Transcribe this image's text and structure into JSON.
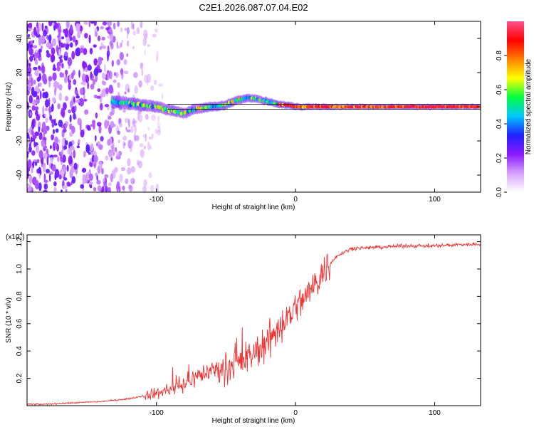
{
  "figure": {
    "title": "C2E1.2026.087.07.04.E02"
  },
  "chart_data": [
    {
      "type": "heatmap",
      "title": "C2E1.2026.087.07.04.E02",
      "xlabel": "Height of straight line (km)",
      "ylabel": "Frequency (Hz)",
      "xlim": [
        -193,
        133
      ],
      "ylim": [
        -50,
        50
      ],
      "xticks": [
        -100,
        0,
        100
      ],
      "xtick_labels": [
        "-100",
        "0",
        "100"
      ],
      "yticks": [
        -40,
        -20,
        0,
        20,
        40
      ],
      "ytick_labels": [
        "-40",
        "-20",
        "0",
        "20",
        "40"
      ],
      "colorbar": {
        "label": "Normalized spectral amplitude",
        "range": [
          0,
          1
        ],
        "ticks": [
          0.0,
          0.2,
          0.4,
          0.6,
          0.8
        ],
        "tick_labels": [
          "0.0",
          "0.2",
          "0.4",
          "0.6",
          "0.8"
        ],
        "colors": [
          "#ffffff",
          "#d7a0ff",
          "#8a1aff",
          "#2020ff",
          "#00c8ff",
          "#00ff40",
          "#ffff00",
          "#ff8000",
          "#ff0000",
          "#ff5090"
        ]
      },
      "ridge": {
        "x": [
          -132,
          -120,
          -110,
          -100,
          -90,
          -80,
          -75,
          -70,
          -60,
          -50,
          -45,
          -40,
          -35,
          -30,
          -25,
          -20,
          -15,
          -10,
          -5,
          0,
          10,
          20,
          30,
          40,
          60,
          80,
          100,
          120,
          133
        ],
        "y": [
          3,
          2,
          1,
          0,
          -2,
          -4,
          -2,
          -1,
          0,
          1,
          3,
          4,
          5,
          5,
          4,
          3,
          2,
          1,
          1,
          0,
          0,
          0,
          0,
          0,
          0,
          0,
          0,
          0,
          0
        ]
      },
      "noise_region_x": [
        -193,
        -105
      ],
      "reference_lines_y": [
        -1.5,
        1.5
      ]
    },
    {
      "type": "line",
      "xlabel": "Height of straight line (km)",
      "ylabel": "SNR (10 * v/v)",
      "y_scale_label": "(x10",
      "y_scale_exponent": "4",
      "xlim": [
        -193,
        133
      ],
      "ylim": [
        0,
        1.25
      ],
      "xticks": [
        -100,
        0,
        100
      ],
      "xtick_labels": [
        "-100",
        "0",
        "100"
      ],
      "yticks": [
        0.2,
        0.4,
        0.6,
        0.8,
        1.0,
        1.2
      ],
      "ytick_labels": [
        "0.2",
        "0.4",
        "0.6",
        "0.8",
        "1.0",
        "1.2"
      ],
      "color": "#ee3333",
      "series": [
        {
          "name": "SNR",
          "x": [
            -193,
            -180,
            -160,
            -140,
            -130,
            -120,
            -110,
            -100,
            -90,
            -80,
            -70,
            -60,
            -50,
            -40,
            -30,
            -20,
            -10,
            0,
            10,
            20,
            30,
            40,
            60,
            80,
            100,
            120,
            133
          ],
          "y": [
            0.01,
            0.01,
            0.02,
            0.03,
            0.04,
            0.05,
            0.07,
            0.09,
            0.12,
            0.16,
            0.22,
            0.26,
            0.29,
            0.31,
            0.38,
            0.48,
            0.6,
            0.72,
            0.83,
            0.98,
            1.1,
            1.15,
            1.16,
            1.17,
            1.17,
            1.18,
            1.18
          ]
        }
      ]
    }
  ]
}
